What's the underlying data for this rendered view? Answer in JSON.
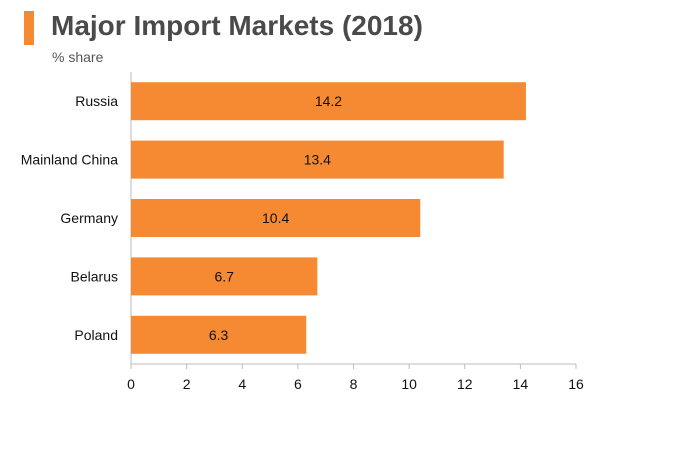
{
  "header": {
    "title": "Major Import Markets (2018)",
    "subtitle": "% share"
  },
  "colors": {
    "accent": "#F58A32",
    "bar": "#F58A32",
    "axis": "#bbbbbb"
  },
  "chart_data": {
    "type": "bar",
    "orientation": "horizontal",
    "title": "Major Import Markets (2018)",
    "subtitle": "% share",
    "categories": [
      "Russia",
      "Mainland China",
      "Germany",
      "Belarus",
      "Poland"
    ],
    "values": [
      14.2,
      13.4,
      10.4,
      6.7,
      6.3
    ],
    "data_labels": [
      "14.2",
      "13.4",
      "10.4",
      "6.7",
      "6.3"
    ],
    "xlim": [
      0,
      16
    ],
    "xticks": [
      0,
      2,
      4,
      6,
      8,
      10,
      12,
      14,
      16
    ],
    "grid": false,
    "legend": "none"
  }
}
